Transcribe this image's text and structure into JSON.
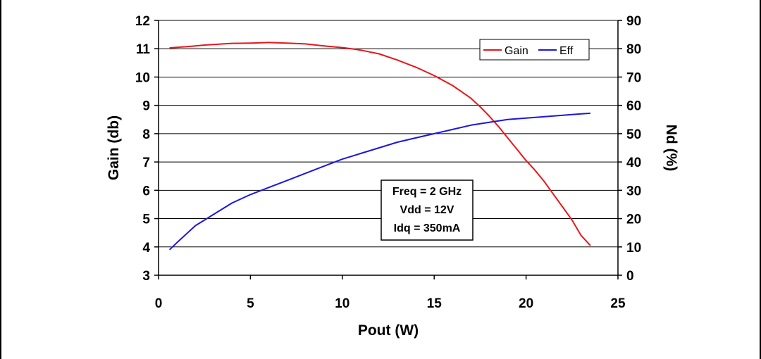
{
  "chart_data": {
    "type": "line",
    "title": "",
    "xlabel": "Pout (W)",
    "ylabel": "Gain (db)",
    "y2label": "Nd (%)",
    "xlim": [
      0,
      25
    ],
    "ylim": [
      3,
      12
    ],
    "y2lim": [
      0,
      90
    ],
    "xticks": [
      "0",
      "5",
      "10",
      "15",
      "20",
      "25"
    ],
    "yticks": [
      "3",
      "4",
      "5",
      "6",
      "7",
      "8",
      "9",
      "10",
      "11",
      "12"
    ],
    "y2ticks": [
      "0",
      "10",
      "20",
      "30",
      "40",
      "50",
      "60",
      "70",
      "80",
      "90"
    ],
    "grid": "horizontal",
    "legend": "top-right",
    "series": [
      {
        "name": "Gain",
        "axis": "left",
        "color": "#e8161b",
        "x": [
          0.6,
          1.0,
          1.5,
          2.0,
          2.5,
          3.0,
          3.5,
          4.0,
          5.0,
          6.0,
          7.0,
          8.0,
          9.0,
          10.0,
          10.5,
          11.0,
          12.0,
          13.0,
          14.0,
          15.0,
          16.0,
          17.0,
          17.5,
          18.0,
          18.5,
          19.0,
          19.5,
          20.0,
          20.5,
          21.0,
          21.5,
          22.0,
          22.5,
          23.0,
          23.5
        ],
        "values": [
          11.03,
          11.05,
          11.07,
          11.1,
          11.13,
          11.15,
          11.17,
          11.19,
          11.2,
          11.22,
          11.2,
          11.17,
          11.1,
          11.04,
          11.0,
          10.95,
          10.82,
          10.6,
          10.35,
          10.05,
          9.7,
          9.25,
          8.95,
          8.62,
          8.25,
          7.85,
          7.45,
          7.05,
          6.7,
          6.3,
          5.85,
          5.4,
          4.95,
          4.4,
          4.05
        ]
      },
      {
        "name": "Eff",
        "axis": "right",
        "color": "#1c16e0",
        "x": [
          0.6,
          1.0,
          1.5,
          2.0,
          2.5,
          3.0,
          4.0,
          5.0,
          6.0,
          7.0,
          8.0,
          9.0,
          10.0,
          11.0,
          12.0,
          13.0,
          14.0,
          15.0,
          16.0,
          17.0,
          18.0,
          19.0,
          20.0,
          21.0,
          22.0,
          23.0,
          23.5
        ],
        "values": [
          9.0,
          11.5,
          14.5,
          17.5,
          19.5,
          21.5,
          25.5,
          28.5,
          31.0,
          33.5,
          36.0,
          38.5,
          41.0,
          43.0,
          45.0,
          47.0,
          48.5,
          50.0,
          51.5,
          53.0,
          54.0,
          55.0,
          55.5,
          56.0,
          56.5,
          57.0,
          57.2
        ]
      }
    ],
    "annotation": [
      "Freq = 2 GHz",
      "Vdd = 12V",
      "Idq = 350mA"
    ]
  }
}
